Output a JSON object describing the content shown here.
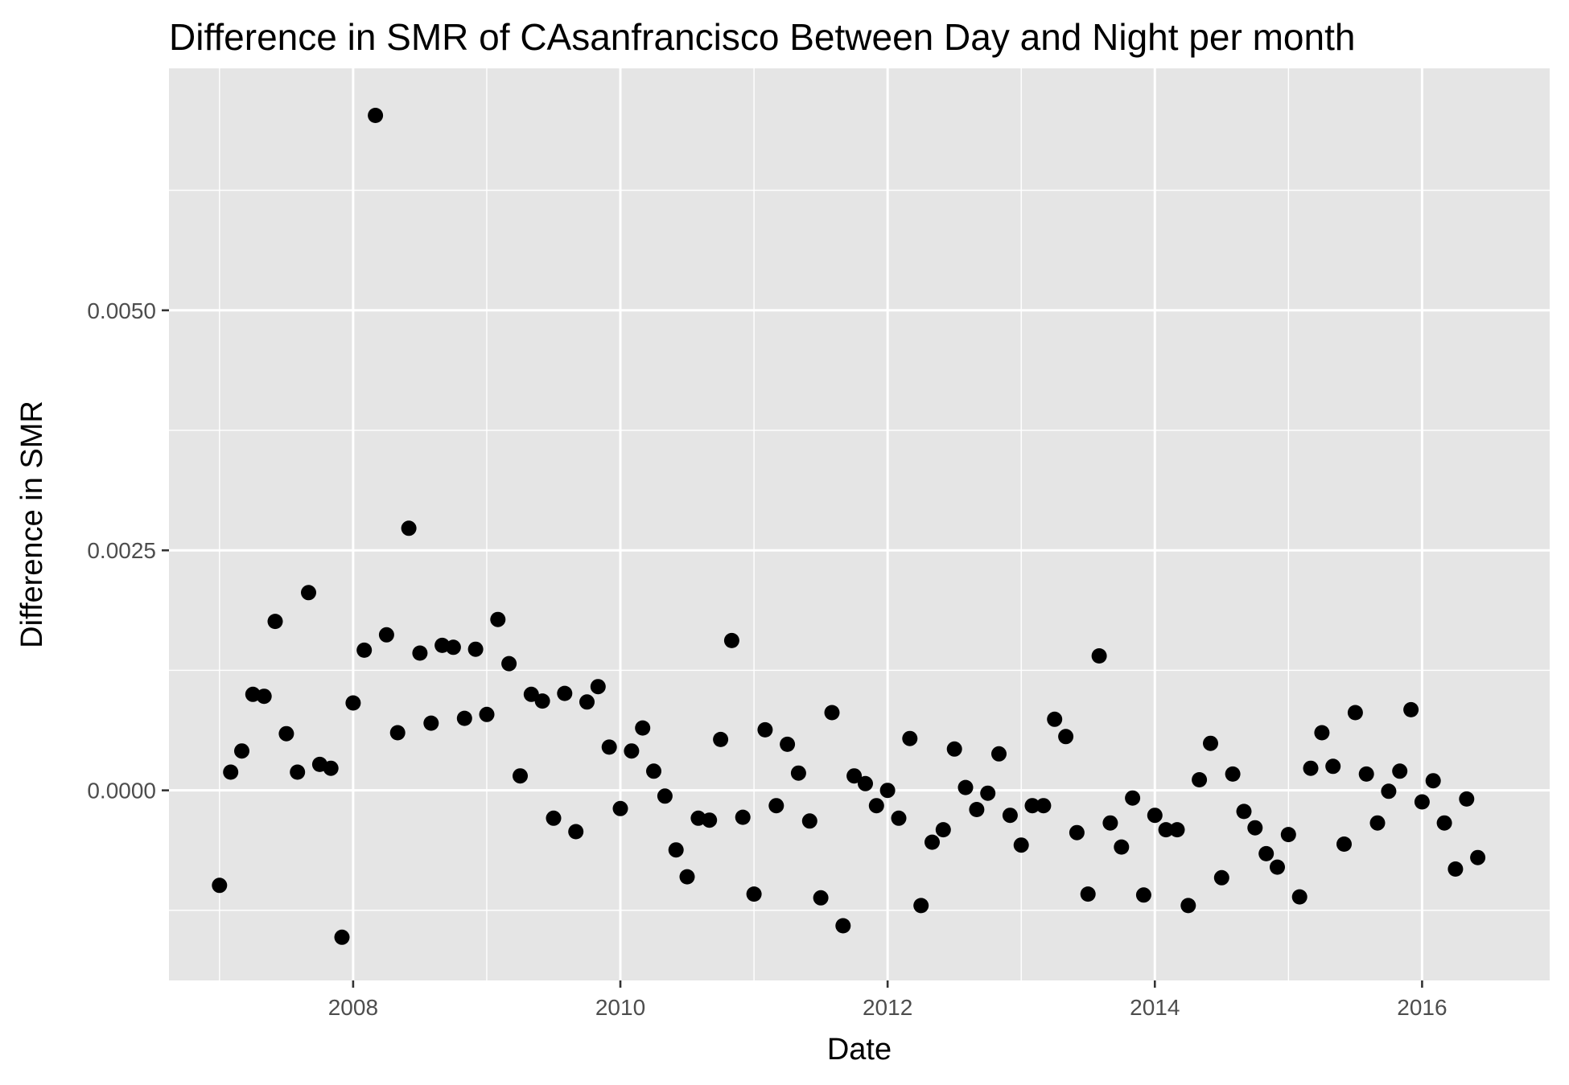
{
  "chart_data": {
    "type": "scatter",
    "title": "Difference in SMR of CAsanfrancisco Between Day and Night per month",
    "xlabel": "Date",
    "ylabel": "Difference in SMR",
    "x_type": "date",
    "xlim": [
      "2006-08-15",
      "2016-12-15"
    ],
    "ylim": [
      -0.00198,
      0.00752
    ],
    "x_ticks": [
      "2008",
      "2010",
      "2012",
      "2014",
      "2016"
    ],
    "y_ticks": [
      "0.0000",
      "0.0025",
      "0.0050"
    ],
    "grid": true,
    "legend": "none",
    "colors": {
      "panel": "#e5e5e5",
      "grid": "#ffffff",
      "point": "#000000"
    },
    "points": [
      {
        "x": "2007-01",
        "y": -0.00099
      },
      {
        "x": "2007-02",
        "y": 0.00019
      },
      {
        "x": "2007-03",
        "y": 0.00041
      },
      {
        "x": "2007-04",
        "y": 0.001
      },
      {
        "x": "2007-05",
        "y": 0.00098
      },
      {
        "x": "2007-06",
        "y": 0.00176
      },
      {
        "x": "2007-07",
        "y": 0.00059
      },
      {
        "x": "2007-08",
        "y": 0.00019
      },
      {
        "x": "2007-09",
        "y": 0.00206
      },
      {
        "x": "2007-10",
        "y": 0.00027
      },
      {
        "x": "2007-11",
        "y": 0.00023
      },
      {
        "x": "2007-12",
        "y": -0.00153
      },
      {
        "x": "2008-01",
        "y": 0.00091
      },
      {
        "x": "2008-02",
        "y": 0.00146
      },
      {
        "x": "2008-03",
        "y": 0.00703
      },
      {
        "x": "2008-04",
        "y": 0.00162
      },
      {
        "x": "2008-05",
        "y": 0.0006
      },
      {
        "x": "2008-06",
        "y": 0.00273
      },
      {
        "x": "2008-07",
        "y": 0.00143
      },
      {
        "x": "2008-08",
        "y": 0.0007
      },
      {
        "x": "2008-09",
        "y": 0.00151
      },
      {
        "x": "2008-10",
        "y": 0.00149
      },
      {
        "x": "2008-11",
        "y": 0.00075
      },
      {
        "x": "2008-12",
        "y": 0.00147
      },
      {
        "x": "2009-01",
        "y": 0.00079
      },
      {
        "x": "2009-02",
        "y": 0.00178
      },
      {
        "x": "2009-03",
        "y": 0.00132
      },
      {
        "x": "2009-04",
        "y": 0.00015
      },
      {
        "x": "2009-05",
        "y": 0.001
      },
      {
        "x": "2009-06",
        "y": 0.00093
      },
      {
        "x": "2009-07",
        "y": -0.00029
      },
      {
        "x": "2009-08",
        "y": 0.00101
      },
      {
        "x": "2009-09",
        "y": -0.00043
      },
      {
        "x": "2009-10",
        "y": 0.00092
      },
      {
        "x": "2009-11",
        "y": 0.00108
      },
      {
        "x": "2009-12",
        "y": 0.00045
      },
      {
        "x": "2010-01",
        "y": -0.00019
      },
      {
        "x": "2010-02",
        "y": 0.00041
      },
      {
        "x": "2010-03",
        "y": 0.00065
      },
      {
        "x": "2010-04",
        "y": 0.0002
      },
      {
        "x": "2010-05",
        "y": -6e-05
      },
      {
        "x": "2010-06",
        "y": -0.00062
      },
      {
        "x": "2010-07",
        "y": -0.0009
      },
      {
        "x": "2010-08",
        "y": -0.00029
      },
      {
        "x": "2010-09",
        "y": -0.00031
      },
      {
        "x": "2010-10",
        "y": 0.00053
      },
      {
        "x": "2010-11",
        "y": 0.00156
      },
      {
        "x": "2010-12",
        "y": -0.00028
      },
      {
        "x": "2011-01",
        "y": -0.00108
      },
      {
        "x": "2011-02",
        "y": 0.00063
      },
      {
        "x": "2011-03",
        "y": -0.00016
      },
      {
        "x": "2011-04",
        "y": 0.00048
      },
      {
        "x": "2011-05",
        "y": 0.00018
      },
      {
        "x": "2011-06",
        "y": -0.00032
      },
      {
        "x": "2011-07",
        "y": -0.00112
      },
      {
        "x": "2011-08",
        "y": 0.00081
      },
      {
        "x": "2011-09",
        "y": -0.00141
      },
      {
        "x": "2011-10",
        "y": 0.00015
      },
      {
        "x": "2011-11",
        "y": 7e-05
      },
      {
        "x": "2011-12",
        "y": -0.00016
      },
      {
        "x": "2012-01",
        "y": 0.0
      },
      {
        "x": "2012-02",
        "y": -0.00029
      },
      {
        "x": "2012-03",
        "y": 0.00054
      },
      {
        "x": "2012-04",
        "y": -0.0012
      },
      {
        "x": "2012-05",
        "y": -0.00054
      },
      {
        "x": "2012-06",
        "y": -0.00041
      },
      {
        "x": "2012-07",
        "y": 0.00043
      },
      {
        "x": "2012-08",
        "y": 3e-05
      },
      {
        "x": "2012-09",
        "y": -0.0002
      },
      {
        "x": "2012-10",
        "y": -3e-05
      },
      {
        "x": "2012-11",
        "y": 0.00038
      },
      {
        "x": "2012-12",
        "y": -0.00026
      },
      {
        "x": "2013-01",
        "y": -0.00057
      },
      {
        "x": "2013-02",
        "y": -0.00016
      },
      {
        "x": "2013-03",
        "y": -0.00016
      },
      {
        "x": "2013-04",
        "y": 0.00074
      },
      {
        "x": "2013-05",
        "y": 0.00056
      },
      {
        "x": "2013-06",
        "y": -0.00044
      },
      {
        "x": "2013-07",
        "y": -0.00108
      },
      {
        "x": "2013-08",
        "y": 0.0014
      },
      {
        "x": "2013-09",
        "y": -0.00034
      },
      {
        "x": "2013-10",
        "y": -0.00059
      },
      {
        "x": "2013-11",
        "y": -8e-05
      },
      {
        "x": "2013-12",
        "y": -0.00109
      },
      {
        "x": "2014-01",
        "y": -0.00026
      },
      {
        "x": "2014-02",
        "y": -0.00041
      },
      {
        "x": "2014-03",
        "y": -0.00041
      },
      {
        "x": "2014-04",
        "y": -0.0012
      },
      {
        "x": "2014-05",
        "y": 0.00011
      },
      {
        "x": "2014-06",
        "y": 0.00049
      },
      {
        "x": "2014-07",
        "y": -0.00091
      },
      {
        "x": "2014-08",
        "y": 0.00017
      },
      {
        "x": "2014-09",
        "y": -0.00022
      },
      {
        "x": "2014-10",
        "y": -0.00039
      },
      {
        "x": "2014-11",
        "y": -0.00066
      },
      {
        "x": "2014-12",
        "y": -0.0008
      },
      {
        "x": "2015-01",
        "y": -0.00046
      },
      {
        "x": "2015-02",
        "y": -0.00111
      },
      {
        "x": "2015-03",
        "y": 0.00023
      },
      {
        "x": "2015-04",
        "y": 0.0006
      },
      {
        "x": "2015-05",
        "y": 0.00025
      },
      {
        "x": "2015-06",
        "y": -0.00056
      },
      {
        "x": "2015-07",
        "y": 0.00081
      },
      {
        "x": "2015-08",
        "y": 0.00017
      },
      {
        "x": "2015-09",
        "y": -0.00034
      },
      {
        "x": "2015-10",
        "y": -1e-05
      },
      {
        "x": "2015-11",
        "y": 0.0002
      },
      {
        "x": "2015-12",
        "y": 0.00084
      },
      {
        "x": "2016-01",
        "y": -0.00012
      },
      {
        "x": "2016-02",
        "y": 0.0001
      },
      {
        "x": "2016-03",
        "y": -0.00034
      },
      {
        "x": "2016-04",
        "y": -0.00082
      },
      {
        "x": "2016-05",
        "y": -9e-05
      },
      {
        "x": "2016-06",
        "y": -0.0007
      }
    ]
  }
}
